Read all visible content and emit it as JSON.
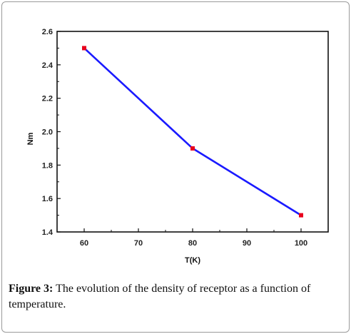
{
  "caption": {
    "label": "Figure 3:",
    "text": "The evolution of the density of receptor as a function of temperature."
  },
  "chart_data": {
    "type": "line",
    "title": "",
    "xlabel": "T(K)",
    "ylabel": "Nm",
    "xlim": [
      55,
      105
    ],
    "ylim": [
      1.4,
      2.6
    ],
    "xticks": [
      60,
      70,
      80,
      90,
      100
    ],
    "yticks": [
      1.4,
      1.6,
      1.8,
      2.0,
      2.2,
      2.4,
      2.6
    ],
    "xtick_labels": [
      "60",
      "70",
      "80",
      "90",
      "100"
    ],
    "ytick_labels": [
      "1.4",
      "1.6",
      "1.8",
      "2.0",
      "2.2",
      "2.4",
      "2.6"
    ],
    "grid": false,
    "series": [
      {
        "x": [
          60,
          80,
          100
        ],
        "y": [
          2.5,
          1.9,
          1.5
        ],
        "line_color": "#1a1aff",
        "marker_color": "#e8001c"
      }
    ]
  }
}
